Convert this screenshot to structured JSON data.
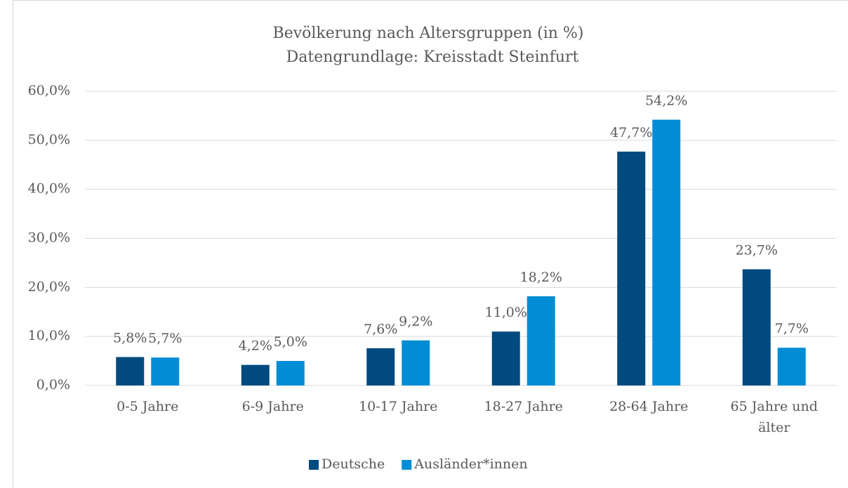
{
  "chart_data": {
    "type": "bar",
    "title": "Bevölkerung nach Altersgruppen (in %)",
    "subtitle": "Datengrundlage: Kreisstadt Steinfurt",
    "categories": [
      "0-5 Jahre",
      "6-9 Jahre",
      "10-17 Jahre",
      "18-27 Jahre",
      "28-64 Jahre",
      "65 Jahre und älter"
    ],
    "series": [
      {
        "name": "Deutsche",
        "color": "#004a80",
        "values": [
          5.8,
          4.2,
          7.6,
          11.0,
          47.7,
          23.7
        ],
        "value_labels": [
          "5,8%",
          "4,2%",
          "7,6%",
          "11,0%",
          "47,7%",
          "23,7%"
        ]
      },
      {
        "name": "Ausländer*innen",
        "color": "#008dd5",
        "values": [
          5.7,
          5.0,
          9.2,
          18.2,
          54.2,
          7.7
        ],
        "value_labels": [
          "5,7%",
          "5,0%",
          "9,2%",
          "18,2%",
          "54,2%",
          "7,7%"
        ]
      }
    ],
    "ylim": [
      0,
      60
    ],
    "yticks": [
      {
        "value": 0,
        "label": "0,0%"
      },
      {
        "value": 10,
        "label": "10,0%"
      },
      {
        "value": 20,
        "label": "20,0%"
      },
      {
        "value": 30,
        "label": "30,0%"
      },
      {
        "value": 40,
        "label": "40,0%"
      },
      {
        "value": 50,
        "label": "50,0%"
      },
      {
        "value": 60,
        "label": "60,0%"
      }
    ],
    "grid": true,
    "legend": "bottom"
  }
}
